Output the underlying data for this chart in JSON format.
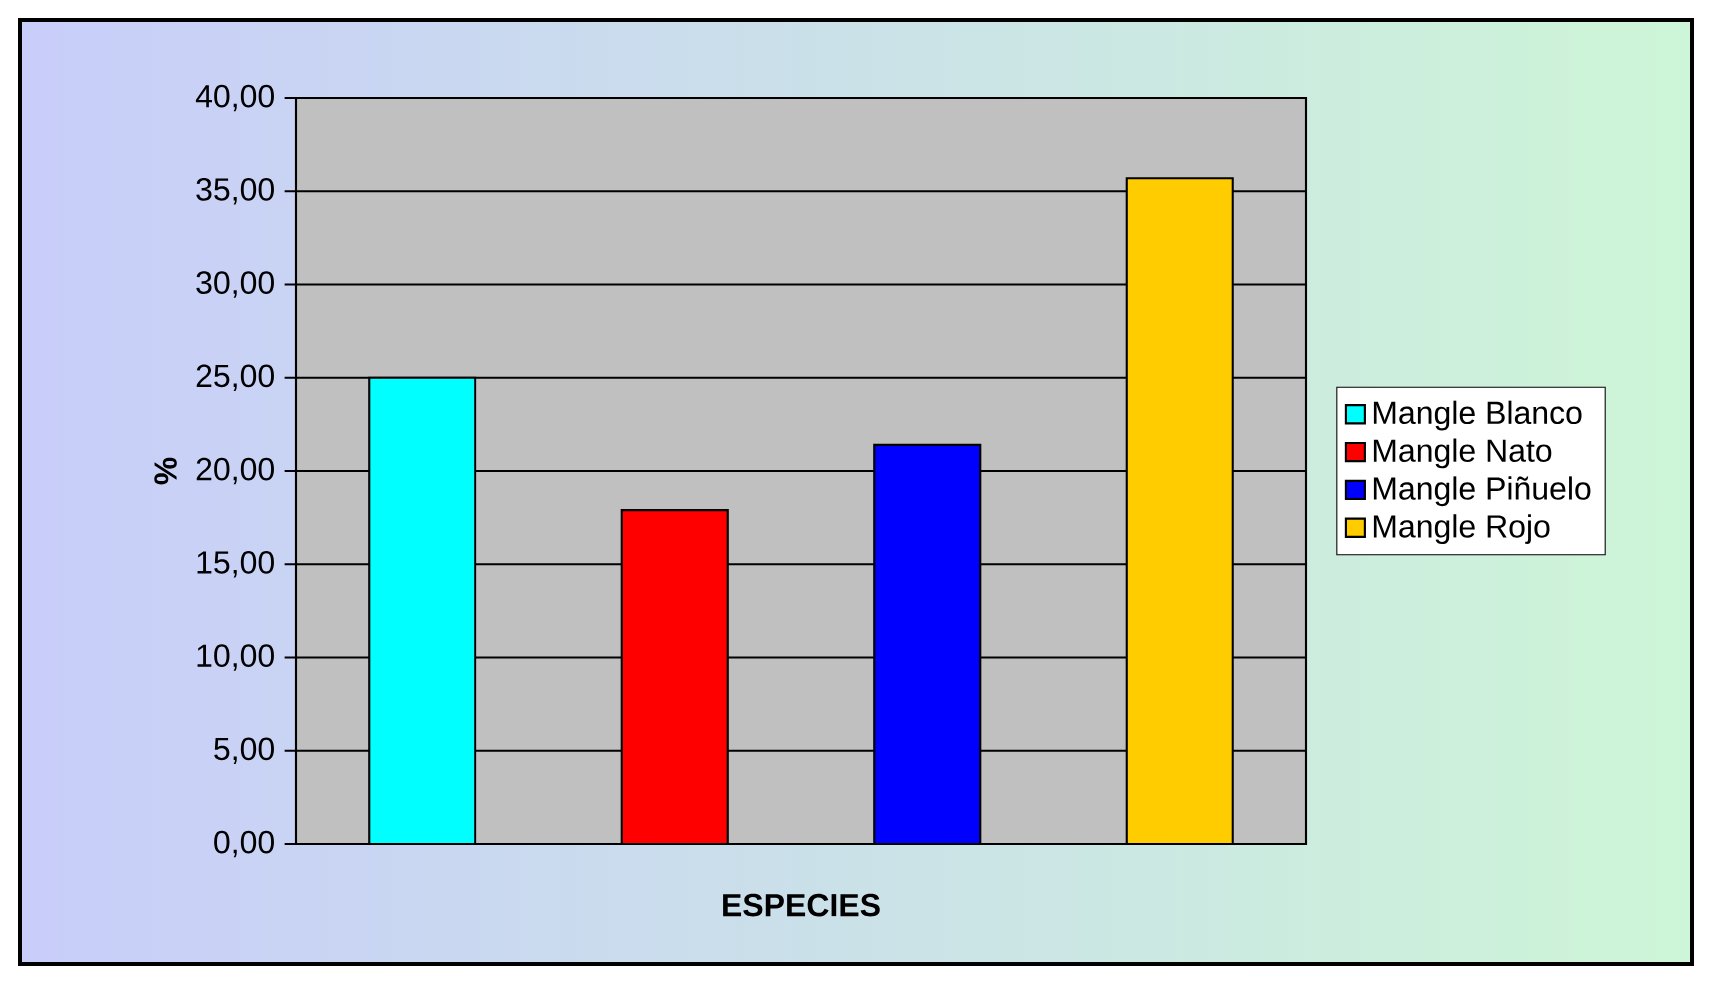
{
  "chart_data": {
    "type": "bar",
    "xlabel": "ESPECIES",
    "ylabel": "%",
    "categories": [
      null,
      null,
      null,
      null
    ],
    "series": [
      {
        "name": "Mangle Blanco",
        "color": "#00ffff",
        "values": [
          25.0,
          null,
          null,
          null
        ]
      },
      {
        "name": "Mangle Nato",
        "color": "#ff0000",
        "values": [
          null,
          17.9,
          null,
          null
        ]
      },
      {
        "name": "Mangle Piñuelo",
        "color": "#0000ff",
        "values": [
          null,
          null,
          21.4,
          null
        ]
      },
      {
        "name": "Mangle Rojo",
        "color": "#ffcc00",
        "values": [
          null,
          null,
          null,
          35.7
        ]
      }
    ],
    "ylim": [
      0,
      40
    ],
    "yticks": [
      {
        "value": 0,
        "label": "0,00"
      },
      {
        "value": 5,
        "label": "5,00"
      },
      {
        "value": 10,
        "label": "10,00"
      },
      {
        "value": 15,
        "label": "15,00"
      },
      {
        "value": 20,
        "label": "20,00"
      },
      {
        "value": 25,
        "label": "25,00"
      },
      {
        "value": 30,
        "label": "30,00"
      },
      {
        "value": 35,
        "label": "35,00"
      },
      {
        "value": 40,
        "label": "40,00"
      }
    ],
    "grid": "y",
    "legend": "right"
  }
}
